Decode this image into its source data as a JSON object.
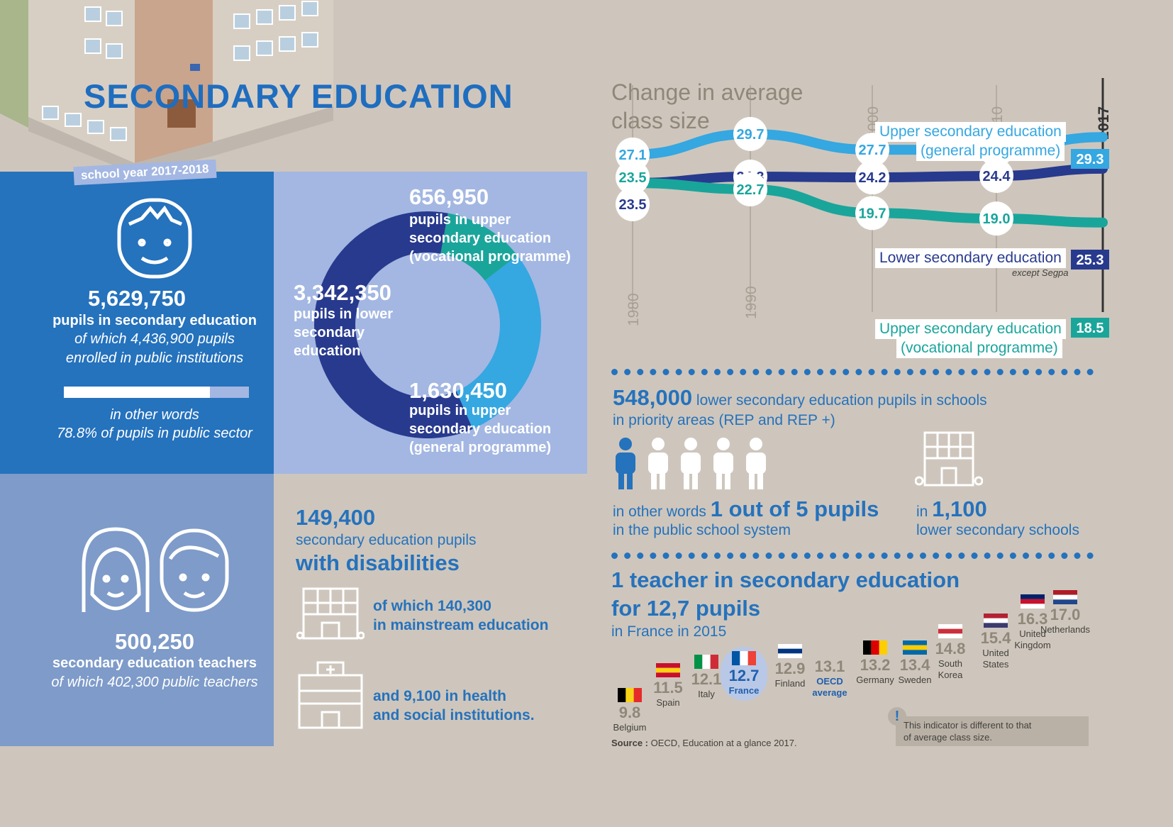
{
  "title": "SECONDARY EDUCATION",
  "school_year": "school year 2017-2018",
  "pupils": {
    "total": "5,629,750",
    "label": "pupils in secondary education",
    "detail_1": "of which 4,436,900 pupils",
    "detail_2": "enrolled in public institutions",
    "words_1": "in other words",
    "words_2": "78.8% of pupils in public sector",
    "public_share": 0.788
  },
  "donut": {
    "vocational_value": "656,950",
    "vocational_l1": "pupils in upper",
    "vocational_l2": "secondary education",
    "vocational_l3": "(vocational programme)",
    "lower_value": "3,342,350",
    "lower_l1": "pupils in lower",
    "lower_l2": "secondary",
    "lower_l3": "education",
    "general_value": "1,630,450",
    "general_l1": "pupils in upper",
    "general_l2": "secondary education",
    "general_l3": "(general programme)"
  },
  "teachers": {
    "value": "500,250",
    "label": "secondary education teachers",
    "detail": "of which 402,300 public teachers"
  },
  "disabilities": {
    "value": "149,400",
    "l1": "secondary education pupils",
    "l2": "with disabilities",
    "mainstream_1": "of which 140,300",
    "mainstream_2": "in mainstream education",
    "health_1": "and 9,100 in health",
    "health_2": "and social institutions."
  },
  "class_size": {
    "title_1": "Change in average",
    "title_2": "class size",
    "years": [
      "1980",
      "1990",
      "2000",
      "2010",
      "2017"
    ],
    "general_l1": "Upper secondary education",
    "general_l2": "(general programme)",
    "lower_label": "Lower secondary education",
    "lower_note": "except Segpa",
    "vocational_l1": "Upper secondary education",
    "vocational_l2": "(vocational programme)",
    "colors": {
      "general": "#35a7e1",
      "lower": "#283a8e",
      "vocational": "#1aa59b"
    }
  },
  "chart_data": [
    {
      "type": "line",
      "title": "Change in average class size",
      "x": [
        1980,
        1990,
        2000,
        2010,
        2017
      ],
      "series": [
        {
          "name": "Upper secondary education (general programme)",
          "values": [
            27.1,
            29.7,
            27.7,
            27.7,
            29.3
          ]
        },
        {
          "name": "Lower secondary education",
          "values": [
            23.5,
            24.3,
            24.2,
            24.4,
            25.3
          ]
        },
        {
          "name": "Upper secondary education (vocational programme)",
          "values": [
            23.5,
            22.7,
            19.7,
            19.0,
            18.5
          ]
        }
      ]
    },
    {
      "type": "pie",
      "categories": [
        "Upper secondary education (vocational programme)",
        "Upper secondary education (general programme)",
        "Lower secondary education"
      ],
      "values": [
        656950,
        1630450,
        3342350
      ],
      "colors": [
        "#1aa59b",
        "#35a7e1",
        "#283a8e"
      ]
    },
    {
      "type": "scatter",
      "title": "1 teacher in secondary education for 12,7 pupils",
      "categories": [
        "Belgium",
        "Spain",
        "Italy",
        "France",
        "Finland",
        "OECD average",
        "Germany",
        "Sweden",
        "South Korea",
        "United States",
        "United Kingdom",
        "Netherlands"
      ],
      "values": [
        9.8,
        11.5,
        12.1,
        12.7,
        12.9,
        13.1,
        13.2,
        13.4,
        14.8,
        15.4,
        16.3,
        17.0
      ]
    }
  ],
  "priority": {
    "value": "548,000",
    "text_1": "lower secondary education pupils in schools",
    "text_2": "in priority areas (REP and REP +)",
    "words": "in other words",
    "ratio": "1 out of 5 pupils",
    "system": "in the public school system",
    "in": "in",
    "schools": "1,100",
    "schools_label": "lower secondary schools"
  },
  "ratio": {
    "title_1": "1 teacher in secondary education",
    "title_2": "for 12,7 pupils",
    "sub": "in France in 2015",
    "countries": [
      {
        "value": "9.8",
        "name": "Belgium"
      },
      {
        "value": "11.5",
        "name": "Spain"
      },
      {
        "value": "12.1",
        "name": "Italy"
      },
      {
        "value": "12.7",
        "name": "France"
      },
      {
        "value": "12.9",
        "name": "Finland"
      },
      {
        "value": "13.1",
        "name": "OECD",
        "name2": "average"
      },
      {
        "value": "13.2",
        "name": "Germany"
      },
      {
        "value": "13.4",
        "name": "Sweden"
      },
      {
        "value": "14.8",
        "name": "South",
        "name2": "Korea"
      },
      {
        "value": "15.4",
        "name": "United",
        "name2": "States"
      },
      {
        "value": "16.3",
        "name": "United",
        "name2": "Kingdom"
      },
      {
        "value": "17.0",
        "name": "Netherlands"
      }
    ],
    "note_1": "This indicator is different to that",
    "note_2": "of average class size.",
    "source_label": "Source :",
    "source_text": "OECD, Education at a glance 2017."
  }
}
